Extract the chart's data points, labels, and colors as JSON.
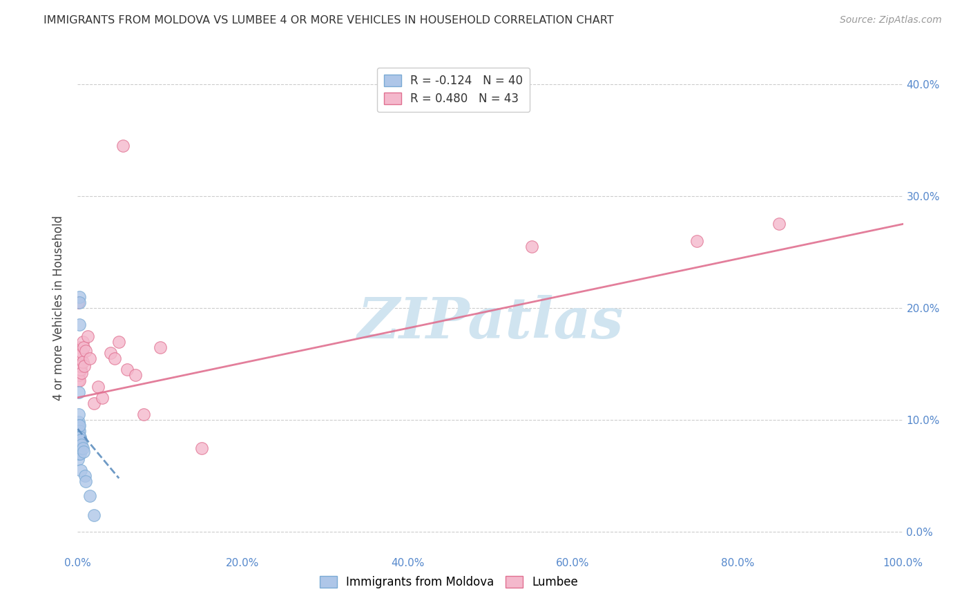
{
  "title": "IMMIGRANTS FROM MOLDOVA VS LUMBEE 4 OR MORE VEHICLES IN HOUSEHOLD CORRELATION CHART",
  "source": "Source: ZipAtlas.com",
  "ylabel": "4 or more Vehicles in Household",
  "xlim": [
    0.0,
    100.0
  ],
  "ylim": [
    -2.0,
    42.0
  ],
  "xticks": [
    0.0,
    20.0,
    40.0,
    60.0,
    80.0,
    100.0
  ],
  "yticks": [
    0.0,
    10.0,
    20.0,
    30.0,
    40.0
  ],
  "moldova_color": "#aec6e8",
  "moldova_edge_color": "#7aaad4",
  "lumbee_color": "#f4b8cc",
  "lumbee_edge_color": "#e07090",
  "moldova_scatter_x": [
    0.05,
    0.05,
    0.05,
    0.05,
    0.05,
    0.05,
    0.08,
    0.08,
    0.08,
    0.08,
    0.08,
    0.1,
    0.1,
    0.1,
    0.1,
    0.12,
    0.12,
    0.12,
    0.15,
    0.15,
    0.15,
    0.18,
    0.18,
    0.2,
    0.2,
    0.22,
    0.22,
    0.25,
    0.3,
    0.3,
    0.35,
    0.4,
    0.4,
    0.5,
    0.6,
    0.7,
    0.9,
    1.0,
    1.5,
    2.0
  ],
  "moldova_scatter_y": [
    9.0,
    8.5,
    8.2,
    7.8,
    7.2,
    6.5,
    9.5,
    9.0,
    8.5,
    8.0,
    7.5,
    9.8,
    9.3,
    8.8,
    7.0,
    12.5,
    10.5,
    8.5,
    9.5,
    8.8,
    8.0,
    21.0,
    20.5,
    18.5,
    9.0,
    9.5,
    8.5,
    8.0,
    8.5,
    7.0,
    7.5,
    8.2,
    5.5,
    7.8,
    7.5,
    7.2,
    5.0,
    4.5,
    3.2,
    1.5
  ],
  "lumbee_scatter_x": [
    0.05,
    0.08,
    0.1,
    0.1,
    0.12,
    0.15,
    0.15,
    0.18,
    0.2,
    0.22,
    0.25,
    0.28,
    0.3,
    0.32,
    0.35,
    0.38,
    0.4,
    0.42,
    0.45,
    0.5,
    0.55,
    0.6,
    0.65,
    0.7,
    0.8,
    1.0,
    1.2,
    1.5,
    2.0,
    2.5,
    3.0,
    4.0,
    4.5,
    5.0,
    5.5,
    6.0,
    7.0,
    8.0,
    10.0,
    15.0,
    55.0,
    75.0,
    85.0
  ],
  "lumbee_scatter_y": [
    20.5,
    13.5,
    15.0,
    14.5,
    14.0,
    16.0,
    15.5,
    13.5,
    16.5,
    15.8,
    15.0,
    14.5,
    15.2,
    14.8,
    14.5,
    16.2,
    15.5,
    14.8,
    14.2,
    15.8,
    16.0,
    15.2,
    17.0,
    16.5,
    14.8,
    16.2,
    17.5,
    15.5,
    11.5,
    13.0,
    12.0,
    16.0,
    15.5,
    17.0,
    34.5,
    14.5,
    14.0,
    10.5,
    16.5,
    7.5,
    25.5,
    26.0,
    27.5
  ],
  "moldova_R": -0.124,
  "moldova_N": 40,
  "lumbee_R": 0.48,
  "lumbee_N": 43,
  "moldova_line_color": "#5588bb",
  "moldova_line_style": "--",
  "lumbee_line_color": "#e07090",
  "lumbee_line_style": "-",
  "moldova_line_x0": 0.0,
  "moldova_line_x1": 5.0,
  "moldova_line_y0": 9.2,
  "moldova_line_y1": 4.8,
  "lumbee_line_x0": 0.0,
  "lumbee_line_x1": 100.0,
  "lumbee_line_y0": 12.0,
  "lumbee_line_y1": 27.5,
  "watermark_text": "ZIPatlas",
  "watermark_color": "#d0e4f0",
  "background_color": "#ffffff",
  "grid_color": "#cccccc",
  "tick_color": "#5588cc",
  "title_color": "#333333",
  "source_color": "#999999",
  "ylabel_color": "#444444"
}
